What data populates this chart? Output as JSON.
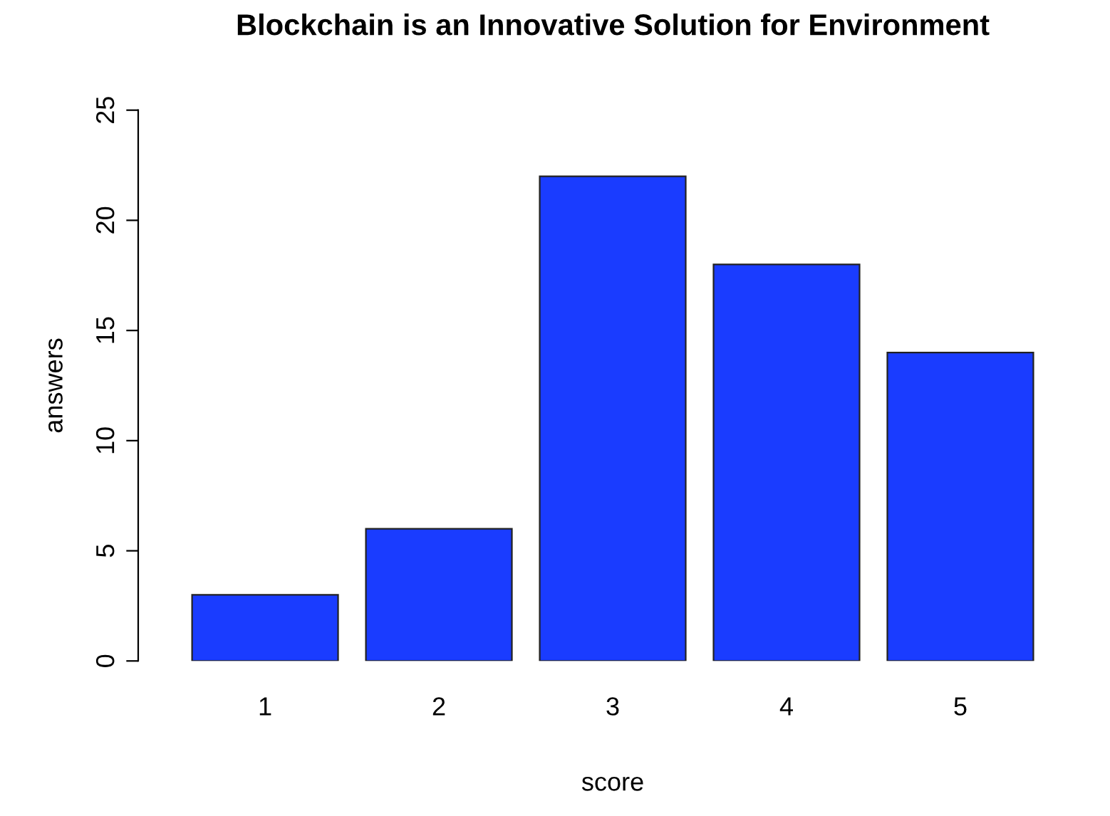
{
  "chart_data": {
    "type": "bar",
    "title": "Blockchain is an Innovative Solution for Environment",
    "xlabel": "score",
    "ylabel": "answers",
    "categories": [
      "1",
      "2",
      "3",
      "4",
      "5"
    ],
    "values": [
      3,
      6,
      22,
      18,
      14
    ],
    "color": "#1a3cff",
    "ylim": [
      0,
      25
    ],
    "yticks": [
      0,
      5,
      10,
      15,
      20,
      25
    ],
    "grid": false,
    "legend": false
  }
}
